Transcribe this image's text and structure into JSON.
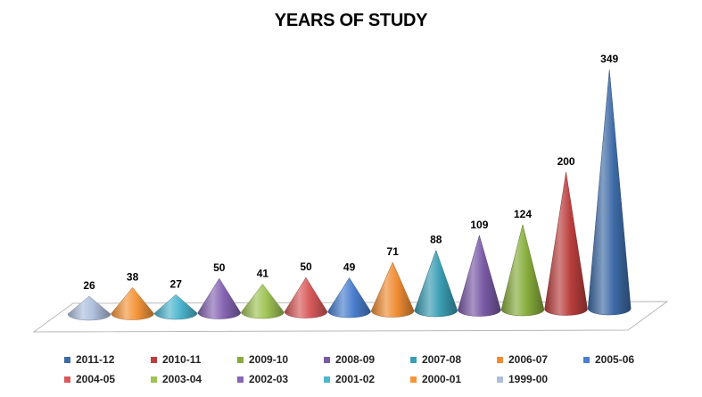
{
  "chart_data": {
    "type": "bar",
    "subtype": "3d-cone",
    "title": "YEARS OF STUDY",
    "xlabel": "",
    "ylabel": "",
    "ylim": [
      0,
      349
    ],
    "grid": false,
    "legend_position": "bottom",
    "series": [
      {
        "name": "1999-00",
        "value": 26,
        "color": "#aebfdd"
      },
      {
        "name": "2000-01",
        "value": 38,
        "color": "#f5953a"
      },
      {
        "name": "2001-02",
        "value": 27,
        "color": "#4fb6cf"
      },
      {
        "name": "2002-03",
        "value": 50,
        "color": "#8766b4"
      },
      {
        "name": "2003-04",
        "value": 41,
        "color": "#9fc355"
      },
      {
        "name": "2004-05",
        "value": 50,
        "color": "#d85a5a"
      },
      {
        "name": "2005-06",
        "value": 49,
        "color": "#4a7fcf"
      },
      {
        "name": "2006-07",
        "value": 71,
        "color": "#ef8c34"
      },
      {
        "name": "2007-08",
        "value": 88,
        "color": "#3b9db4"
      },
      {
        "name": "2008-09",
        "value": 109,
        "color": "#7a5aa6"
      },
      {
        "name": "2009-10",
        "value": 124,
        "color": "#87ac3c"
      },
      {
        "name": "2010-11",
        "value": 200,
        "color": "#ba3f3e"
      },
      {
        "name": "2011-12",
        "value": 349,
        "color": "#3e6ba6"
      }
    ],
    "legend_order": [
      [
        "2011-12",
        "2010-11",
        "2009-10",
        "2008-09",
        "2007-08",
        "2006-07",
        "2005-06"
      ],
      [
        "2004-05",
        "2003-04",
        "2002-03",
        "2001-02",
        "2000-01",
        "1999-00"
      ]
    ]
  }
}
